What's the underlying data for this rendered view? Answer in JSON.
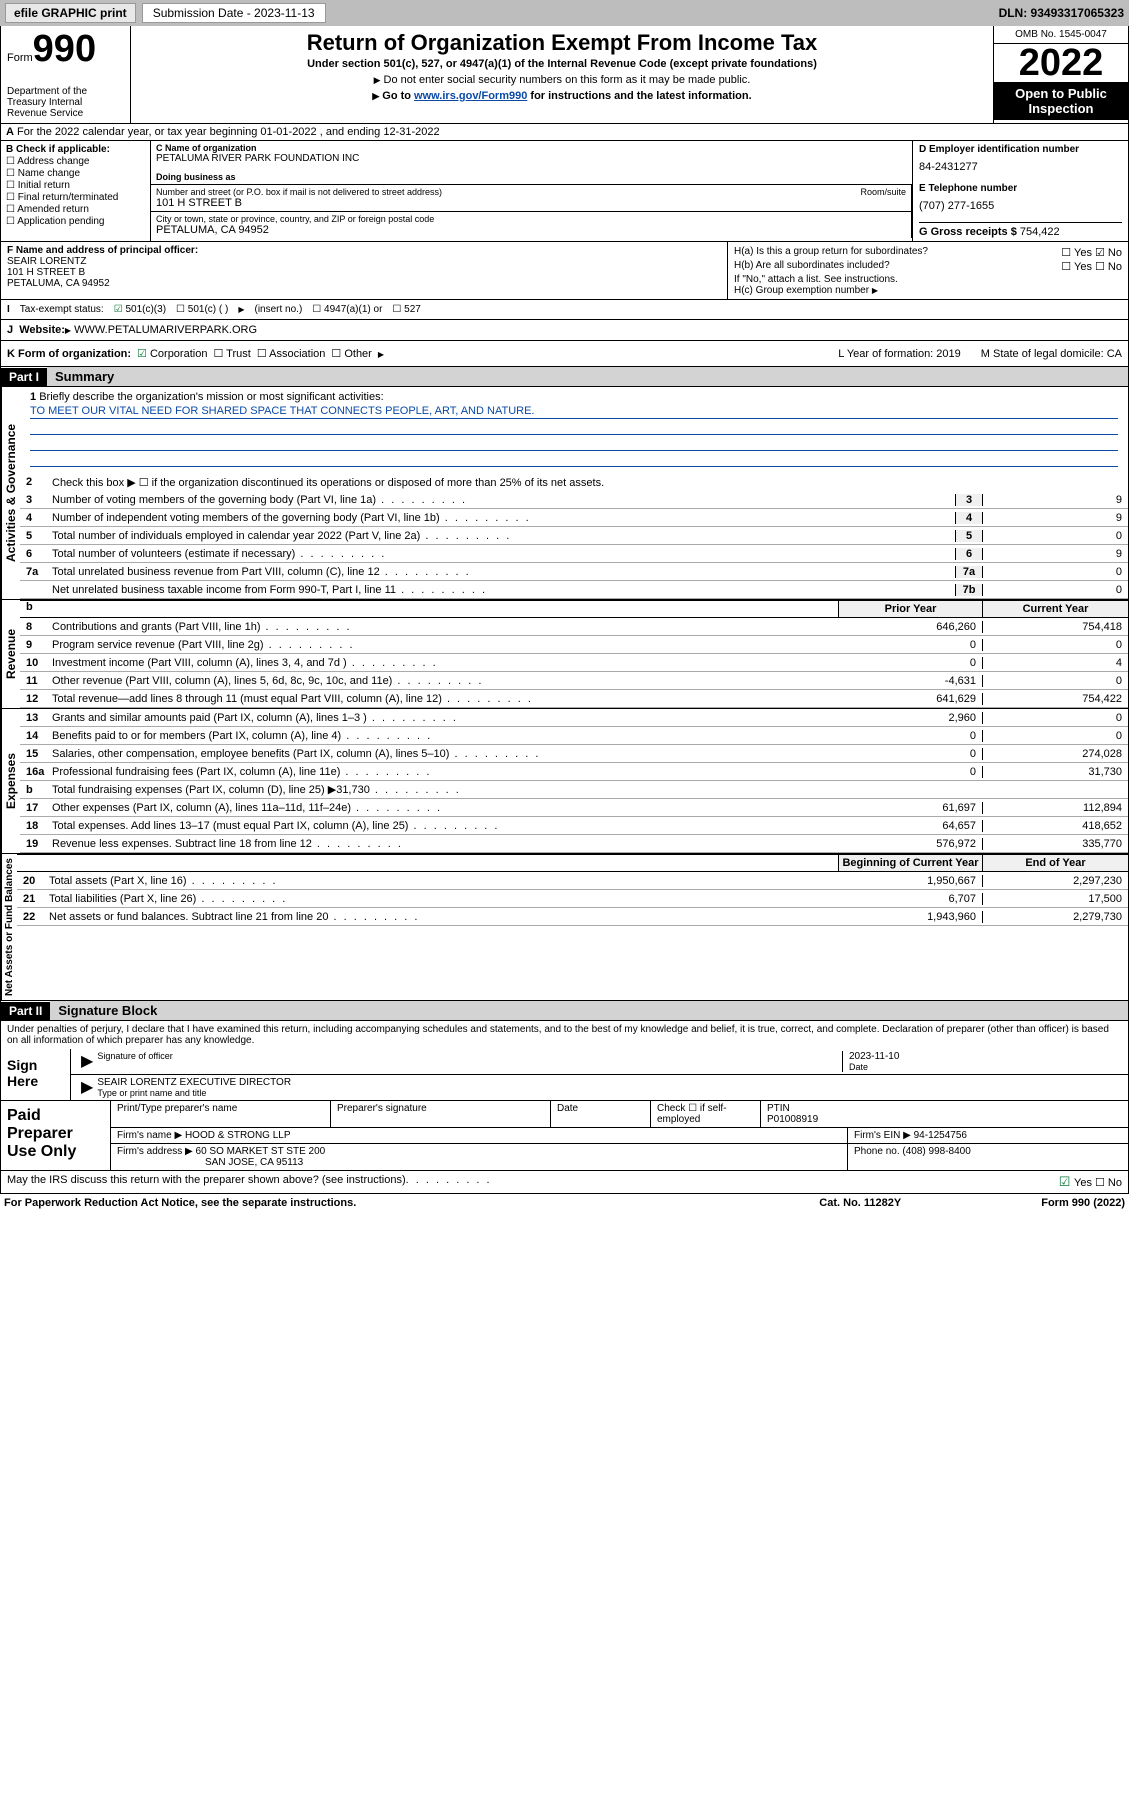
{
  "topbar": {
    "efile": "efile GRAPHIC print",
    "sub_label": "Submission Date - 2023-11-13",
    "dln": "DLN: 93493317065323"
  },
  "header": {
    "form_word": "Form",
    "form_num": "990",
    "dept": "Department of the Treasury Internal Revenue Service",
    "title": "Return of Organization Exempt From Income Tax",
    "subtitle": "Under section 501(c), 527, or 4947(a)(1) of the Internal Revenue Code (except private foundations)",
    "note1": "Do not enter social security numbers on this form as it may be made public.",
    "note2_pre": "Go to ",
    "note2_link": "www.irs.gov/Form990",
    "note2_post": " for instructions and the latest information.",
    "omb": "OMB No. 1545-0047",
    "year": "2022",
    "open": "Open to Public Inspection"
  },
  "rowA": "For the 2022 calendar year, or tax year beginning 01-01-2022   , and ending 12-31-2022",
  "B": {
    "hd": "B Check if applicable:",
    "opts": [
      "Address change",
      "Name change",
      "Initial return",
      "Final return/terminated",
      "Amended return",
      "Application pending"
    ]
  },
  "C": {
    "name_lbl": "C Name of organization",
    "name": "PETALUMA RIVER PARK FOUNDATION INC",
    "dba_lbl": "Doing business as",
    "dba": "",
    "addr_lbl": "Number and street (or P.O. box if mail is not delivered to street address)",
    "room_lbl": "Room/suite",
    "addr": "101 H STREET B",
    "city_lbl": "City or town, state or province, country, and ZIP or foreign postal code",
    "city": "PETALUMA, CA  94952"
  },
  "D": {
    "ein_lbl": "D Employer identification number",
    "ein": "84-2431277",
    "tel_lbl": "E Telephone number",
    "tel": "(707) 277-1655",
    "gross_lbl": "G Gross receipts $",
    "gross": "754,422"
  },
  "F": {
    "lbl": "F Name and address of principal officer:",
    "name": "SEAIR LORENTZ",
    "addr": "101 H STREET B",
    "city": "PETALUMA, CA  94952"
  },
  "H": {
    "a": "H(a)  Is this a group return for subordinates?",
    "b": "H(b)  Are all subordinates included?",
    "b_note": "If \"No,\" attach a list. See instructions.",
    "c": "H(c)  Group exemption number"
  },
  "I": {
    "lbl": "Tax-exempt status:",
    "o1": "501(c)(3)",
    "o2": "501(c) (  )",
    "o2b": "(insert no.)",
    "o3": "4947(a)(1) or",
    "o4": "527"
  },
  "J": {
    "lbl": "Website:",
    "val": "WWW.PETALUMARIVERPARK.ORG"
  },
  "K": {
    "lbl": "K Form of organization:",
    "o1": "Corporation",
    "o2": "Trust",
    "o3": "Association",
    "o4": "Other",
    "L": "L Year of formation: 2019",
    "M": "M State of legal domicile: CA"
  },
  "part1": {
    "hdr": "Part I",
    "title": "Summary"
  },
  "mission": {
    "q": "Briefly describe the organization's mission or most significant activities:",
    "txt": "TO MEET OUR VITAL NEED FOR SHARED SPACE THAT CONNECTS PEOPLE, ART, AND NATURE."
  },
  "gov": {
    "l2": "Check this box ▶ ☐  if the organization discontinued its operations or disposed of more than 25% of its net assets.",
    "lines": [
      {
        "n": "3",
        "t": "Number of voting members of the governing body (Part VI, line 1a)",
        "b": "3",
        "v": "9"
      },
      {
        "n": "4",
        "t": "Number of independent voting members of the governing body (Part VI, line 1b)",
        "b": "4",
        "v": "9"
      },
      {
        "n": "5",
        "t": "Total number of individuals employed in calendar year 2022 (Part V, line 2a)",
        "b": "5",
        "v": "0"
      },
      {
        "n": "6",
        "t": "Total number of volunteers (estimate if necessary)",
        "b": "6",
        "v": "9"
      },
      {
        "n": "7a",
        "t": "Total unrelated business revenue from Part VIII, column (C), line 12",
        "b": "7a",
        "v": "0"
      },
      {
        "n": "",
        "t": "Net unrelated business taxable income from Form 990-T, Part I, line 11",
        "b": "7b",
        "v": "0"
      }
    ]
  },
  "hdrs": {
    "b": "b",
    "prior": "Prior Year",
    "curr": "Current Year"
  },
  "rev": [
    {
      "n": "8",
      "t": "Contributions and grants (Part VIII, line 1h)",
      "p": "646,260",
      "c": "754,418"
    },
    {
      "n": "9",
      "t": "Program service revenue (Part VIII, line 2g)",
      "p": "0",
      "c": "0"
    },
    {
      "n": "10",
      "t": "Investment income (Part VIII, column (A), lines 3, 4, and 7d )",
      "p": "0",
      "c": "4"
    },
    {
      "n": "11",
      "t": "Other revenue (Part VIII, column (A), lines 5, 6d, 8c, 9c, 10c, and 11e)",
      "p": "-4,631",
      "c": "0"
    },
    {
      "n": "12",
      "t": "Total revenue—add lines 8 through 11 (must equal Part VIII, column (A), line 12)",
      "p": "641,629",
      "c": "754,422"
    }
  ],
  "exp": [
    {
      "n": "13",
      "t": "Grants and similar amounts paid (Part IX, column (A), lines 1–3 )",
      "p": "2,960",
      "c": "0"
    },
    {
      "n": "14",
      "t": "Benefits paid to or for members (Part IX, column (A), line 4)",
      "p": "0",
      "c": "0"
    },
    {
      "n": "15",
      "t": "Salaries, other compensation, employee benefits (Part IX, column (A), lines 5–10)",
      "p": "0",
      "c": "274,028"
    },
    {
      "n": "16a",
      "t": "Professional fundraising fees (Part IX, column (A), line 11e)",
      "p": "0",
      "c": "31,730"
    },
    {
      "n": "b",
      "t": "Total fundraising expenses (Part IX, column (D), line 25) ▶31,730",
      "p": "",
      "c": ""
    },
    {
      "n": "17",
      "t": "Other expenses (Part IX, column (A), lines 11a–11d, 11f–24e)",
      "p": "61,697",
      "c": "112,894"
    },
    {
      "n": "18",
      "t": "Total expenses. Add lines 13–17 (must equal Part IX, column (A), line 25)",
      "p": "64,657",
      "c": "418,652"
    },
    {
      "n": "19",
      "t": "Revenue less expenses. Subtract line 18 from line 12",
      "p": "576,972",
      "c": "335,770"
    }
  ],
  "na_hdr": {
    "c1": "Beginning of Current Year",
    "c2": "End of Year"
  },
  "na": [
    {
      "n": "20",
      "t": "Total assets (Part X, line 16)",
      "p": "1,950,667",
      "c": "2,297,230"
    },
    {
      "n": "21",
      "t": "Total liabilities (Part X, line 26)",
      "p": "6,707",
      "c": "17,500"
    },
    {
      "n": "22",
      "t": "Net assets or fund balances. Subtract line 21 from line 20",
      "p": "1,943,960",
      "c": "2,279,730"
    }
  ],
  "part2": {
    "hdr": "Part II",
    "title": "Signature Block"
  },
  "sig": {
    "declare": "Under penalties of perjury, I declare that I have examined this return, including accompanying schedules and statements, and to the best of my knowledge and belief, it is true, correct, and complete. Declaration of preparer (other than officer) is based on all information of which preparer has any knowledge.",
    "here": "Sign Here",
    "sig_lbl": "Signature of officer",
    "date_lbl": "Date",
    "date": "2023-11-10",
    "name": "SEAIR LORENTZ  EXECUTIVE DIRECTOR",
    "name_lbl": "Type or print name and title"
  },
  "paid": {
    "hdr": "Paid Preparer Use Only",
    "c1": "Print/Type preparer's name",
    "c2": "Preparer's signature",
    "c3": "Date",
    "c4a": "Check ☐ if self-employed",
    "c4b": "PTIN",
    "ptin": "P01008919",
    "firm_lbl": "Firm's name   ▶",
    "firm": "HOOD & STRONG LLP",
    "ein_lbl": "Firm's EIN ▶",
    "ein": "94-1254756",
    "addr_lbl": "Firm's address ▶",
    "addr1": "60 SO MARKET ST STE 200",
    "addr2": "SAN JOSE, CA  95113",
    "ph_lbl": "Phone no.",
    "ph": "(408) 998-8400"
  },
  "footer": {
    "discuss": "May the IRS discuss this return with the preparer shown above? (see instructions)",
    "yn": "Yes   ☐ No",
    "pra": "For Paperwork Reduction Act Notice, see the separate instructions.",
    "cat": "Cat. No. 11282Y",
    "form": "Form 990 (2022)"
  },
  "vlabels": {
    "gov": "Activities & Governance",
    "rev": "Revenue",
    "exp": "Expenses",
    "na": "Net Assets or Fund Balances"
  }
}
